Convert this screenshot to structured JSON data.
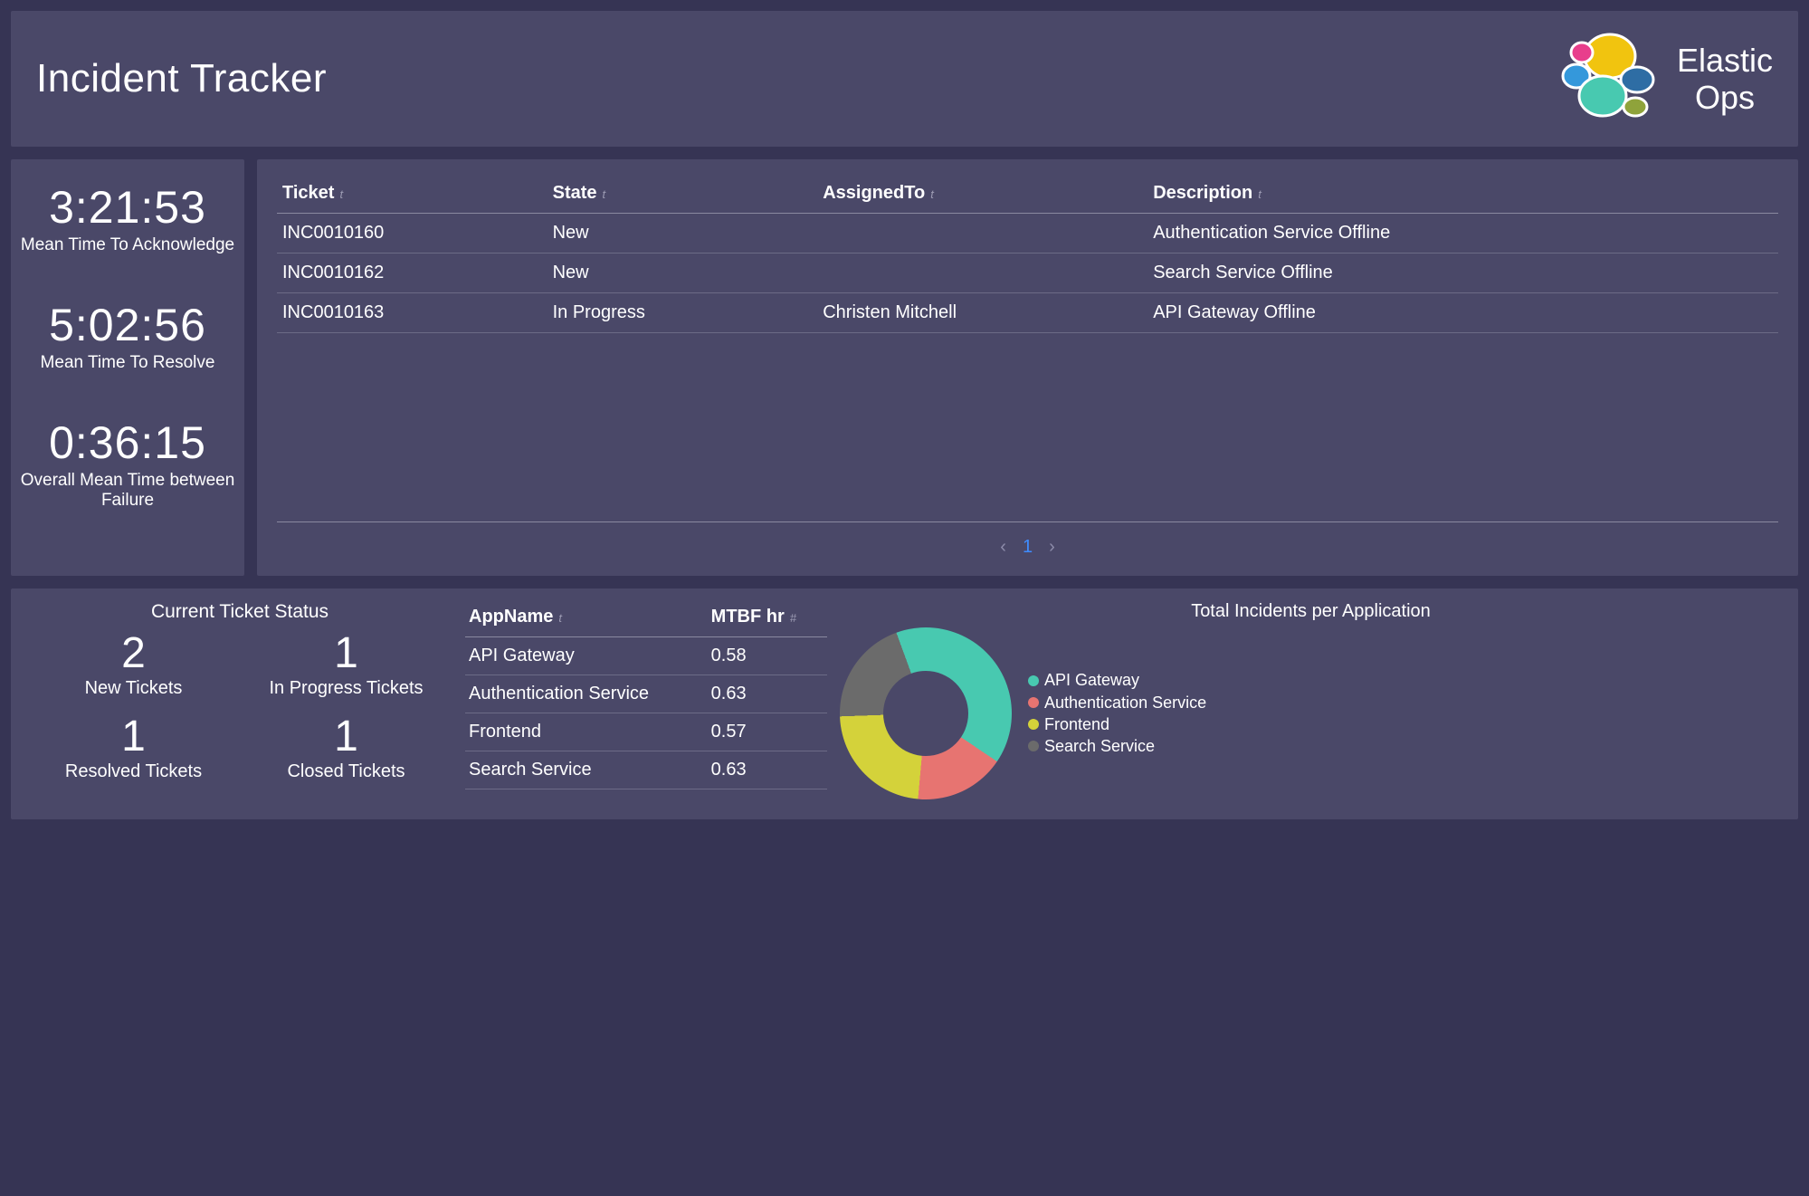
{
  "colors": {
    "page_bg": "#363454",
    "panel_bg": "#4a4868",
    "text": "#ffffff",
    "muted": "#9d9cb4",
    "divider": "#6c6b86",
    "pager_active": "#3f8cff"
  },
  "header": {
    "title": "Incident Tracker",
    "brand_line1": "Elastic",
    "brand_line2": "Ops",
    "logo_colors": {
      "yellow": "#f1c40f",
      "pink": "#e83e8c",
      "blue": "#3498db",
      "teal": "#48c9b0",
      "navy": "#2e6da4",
      "olive": "#8fa33b"
    }
  },
  "metrics": [
    {
      "value": "3:21:53",
      "label": "Mean Time To Acknowledge"
    },
    {
      "value": "5:02:56",
      "label": "Mean Time To Resolve"
    },
    {
      "value": "0:36:15",
      "label": "Overall Mean Time between Failure"
    }
  ],
  "tickets": {
    "columns": [
      "Ticket",
      "State",
      "AssignedTo",
      "Description"
    ],
    "col_widths_pct": [
      18,
      18,
      22,
      42
    ],
    "sort_glyph": "t",
    "rows": [
      {
        "ticket": "INC0010160",
        "state": "New",
        "assigned": "",
        "desc": "Authentication Service Offline"
      },
      {
        "ticket": "INC0010162",
        "state": "New",
        "assigned": "",
        "desc": "Search Service Offline"
      },
      {
        "ticket": "INC0010163",
        "state": "In Progress",
        "assigned": "Christen Mitchell",
        "desc": "API Gateway Offline"
      }
    ],
    "pager": {
      "prev": "‹",
      "page": "1",
      "next": "›"
    }
  },
  "status": {
    "title": "Current Ticket Status",
    "cells": [
      {
        "num": "2",
        "label": "New Tickets"
      },
      {
        "num": "1",
        "label": "In Progress Tickets"
      },
      {
        "num": "1",
        "label": "Resolved Tickets"
      },
      {
        "num": "1",
        "label": "Closed Tickets"
      }
    ]
  },
  "mtbf": {
    "columns": [
      "AppName",
      "MTBF hr"
    ],
    "sort_glyphs": [
      "t",
      "#"
    ],
    "rows": [
      {
        "app": "API Gateway",
        "hr": "0.58"
      },
      {
        "app": "Authentication Service",
        "hr": "0.63"
      },
      {
        "app": "Frontend",
        "hr": "0.57"
      },
      {
        "app": "Search Service",
        "hr": "0.63"
      }
    ]
  },
  "donut": {
    "title": "Total Incidents per Application",
    "slices": [
      {
        "label": "API Gateway",
        "color": "#48c9b0",
        "pct": 40
      },
      {
        "label": "Authentication Service",
        "color": "#e77471",
        "pct": 17
      },
      {
        "label": "Frontend",
        "color": "#d4d23a",
        "pct": 23
      },
      {
        "label": "Search Service",
        "color": "#6b6b6b",
        "pct": 20
      }
    ]
  }
}
